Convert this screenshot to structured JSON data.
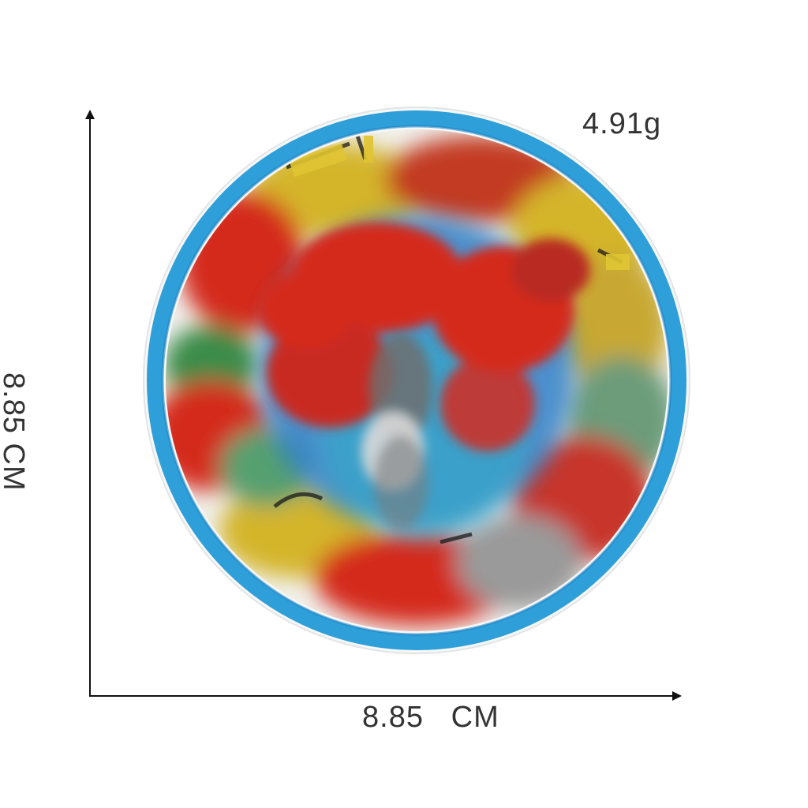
{
  "labels": {
    "weight": "4.91g",
    "width": "8.85   CM",
    "height": "8.85 CM"
  },
  "product": {
    "name_icon": "round-embroidered-patch-icon",
    "colors": {
      "rim": "#2e9fd8",
      "rim_dark": "#1c82c4",
      "fabric": "#f4f4f2",
      "red": "#d42a1e",
      "yellow": "#d4b52c",
      "blue": "#2f7fc8",
      "teal": "#37a6c9",
      "green": "#3a8c4a",
      "gray": "#8f8f8f"
    }
  }
}
